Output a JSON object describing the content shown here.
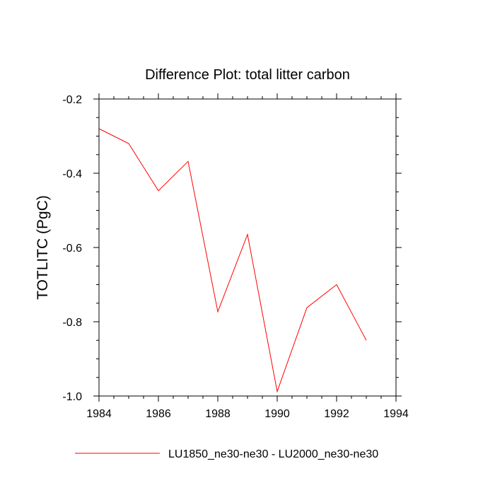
{
  "chart_data": {
    "type": "line",
    "title": "Difference Plot: total litter carbon",
    "xlabel": "",
    "ylabel": "TOTLITC  (PgC)",
    "xlim": [
      1984,
      1994
    ],
    "ylim": [
      -1.0,
      -0.2
    ],
    "xticks": [
      1984,
      1986,
      1988,
      1990,
      1992,
      1994
    ],
    "xtick_labels": [
      "1984",
      "1986",
      "1988",
      "1990",
      "1992",
      "1994"
    ],
    "yticks": [
      -1.0,
      -0.8,
      -0.6,
      -0.4,
      -0.2
    ],
    "ytick_labels": [
      "-1.0",
      "-0.8",
      "-0.6",
      "-0.4",
      "-0.2"
    ],
    "grid": false,
    "legend_position": "bottom",
    "series": [
      {
        "name": "LU1850_ne30-ne30 - LU2000_ne30-ne30",
        "color": "#ff0000",
        "x": [
          1984,
          1985,
          1986,
          1987,
          1988,
          1989,
          1990,
          1991,
          1992,
          1993
        ],
        "values": [
          -0.28,
          -0.32,
          -0.447,
          -0.368,
          -0.773,
          -0.565,
          -0.988,
          -0.762,
          -0.7,
          -0.85
        ]
      }
    ]
  }
}
